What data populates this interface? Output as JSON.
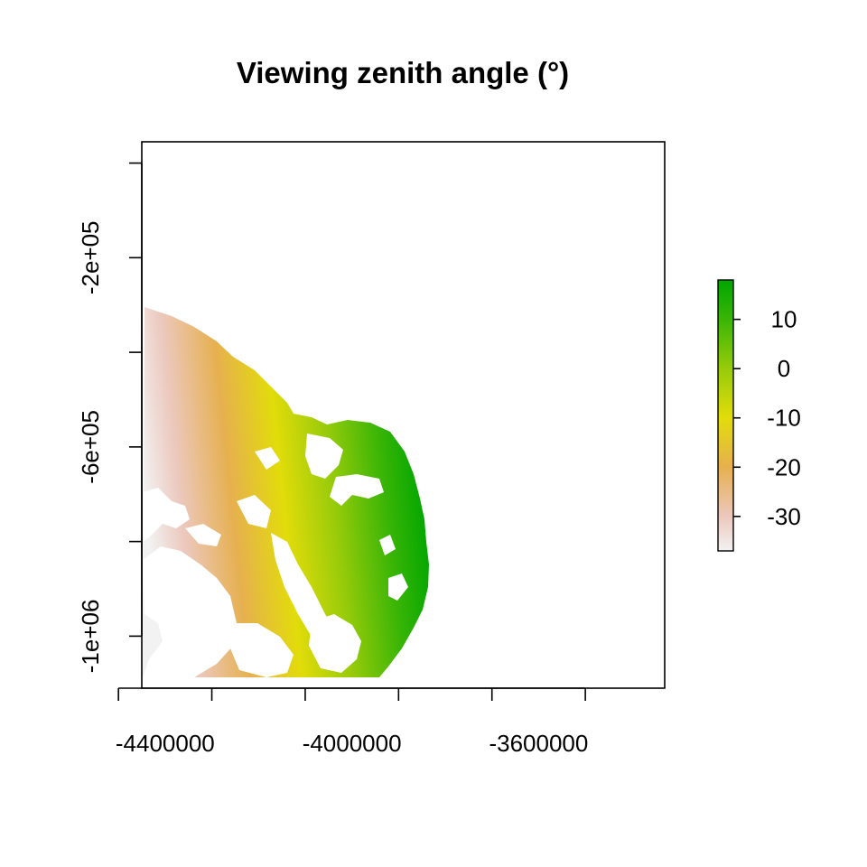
{
  "chart_data": {
    "type": "heatmap",
    "title": "Viewing zenith angle (°)",
    "xlabel": "",
    "ylabel": "",
    "x_ticks": [
      -4500000,
      -4300000,
      -4100000,
      -3900000,
      -3700000,
      -3500000
    ],
    "x_tick_labels": [
      {
        "value": -4400000,
        "label": "-4400000"
      },
      {
        "value": -4000000,
        "label": "-4000000"
      },
      {
        "value": -3600000,
        "label": "-3600000"
      }
    ],
    "y_ticks": [
      0,
      -200000,
      -400000,
      -600000,
      -800000,
      -1000000
    ],
    "y_tick_labels": [
      {
        "value": -200000,
        "label": "-2e+05"
      },
      {
        "value": -600000,
        "label": "-6e+05"
      },
      {
        "value": -1000000,
        "label": "-1e+06"
      }
    ],
    "xlim": [
      -4450000,
      -3330000
    ],
    "ylim": [
      -1110000,
      45000
    ],
    "legend": {
      "placement": "right",
      "range": [
        -37,
        18
      ],
      "tick_values": [
        10,
        0,
        -10,
        -20,
        -30
      ],
      "tick_labels": [
        "10",
        "0",
        "-10",
        "-20",
        "-30"
      ],
      "color_stops": [
        {
          "value": -37,
          "color": "#f2f2f2"
        },
        {
          "value": -30,
          "color": "#ecc8bd"
        },
        {
          "value": -20,
          "color": "#e6b04f"
        },
        {
          "value": -10,
          "color": "#e2dc0a"
        },
        {
          "value": 0,
          "color": "#97cb0a"
        },
        {
          "value": 10,
          "color": "#3ab506"
        },
        {
          "value": 18,
          "color": "#00a600"
        }
      ]
    },
    "gradient_direction": "increases from west (x≈-4450000, ≈-37°) to east (x≈-3870000, ≈18°)",
    "grid": false
  }
}
